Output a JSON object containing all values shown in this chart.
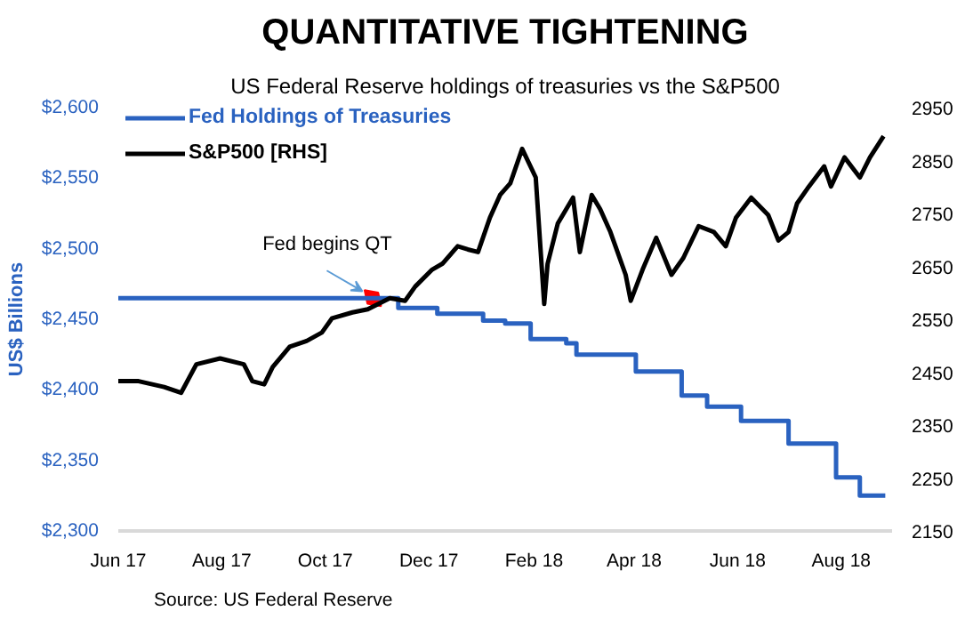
{
  "chart_data": {
    "type": "line",
    "title": "QUANTITATIVE TIGHTENING",
    "subtitle": "US Federal Reserve holdings of treasuries vs the S&P500",
    "ylabel": "US$ Billions",
    "legend": "top left",
    "grid": false,
    "xlim": [
      "2017-06-01",
      "2018-08-31"
    ],
    "xticks": [
      {
        "value": "2017-06-01",
        "label": "Jun 17"
      },
      {
        "value": "2017-08-01",
        "label": "Aug 17"
      },
      {
        "value": "2017-10-01",
        "label": "Oct 17"
      },
      {
        "value": "2017-12-01",
        "label": "Dec 17"
      },
      {
        "value": "2018-02-01",
        "label": "Feb 18"
      },
      {
        "value": "2018-04-01",
        "label": "Apr 18"
      },
      {
        "value": "2018-06-01",
        "label": "Jun 18"
      },
      {
        "value": "2018-08-01",
        "label": "Aug 18"
      }
    ],
    "ylim": [
      2300,
      2600
    ],
    "yticks": [
      {
        "value": 2300,
        "label": "$2,300"
      },
      {
        "value": 2350,
        "label": "$2,350"
      },
      {
        "value": 2400,
        "label": "$2,400"
      },
      {
        "value": 2450,
        "label": "$2,450"
      },
      {
        "value": 2500,
        "label": "$2,500"
      },
      {
        "value": 2550,
        "label": "$2,550"
      },
      {
        "value": 2600,
        "label": "$2,600"
      }
    ],
    "y2lim": [
      2150,
      2950
    ],
    "y2ticks": [
      2150,
      2250,
      2350,
      2450,
      2550,
      2650,
      2750,
      2850,
      2950
    ],
    "series": [
      {
        "name": "Fed Holdings of Treasuries",
        "color": "#2a62c0",
        "type": "step",
        "x": [
          "2017-06-01",
          "2017-11-13",
          "2017-12-06",
          "2018-01-02",
          "2018-01-15",
          "2018-01-30",
          "2018-02-20",
          "2018-02-26",
          "2018-04-02",
          "2018-04-29",
          "2018-05-14",
          "2018-06-03",
          "2018-07-01",
          "2018-07-29",
          "2018-08-12",
          "2018-08-27"
        ],
        "values": [
          2465,
          2458,
          2454,
          2449,
          2447,
          2436,
          2433,
          2425,
          2413,
          2396,
          2388,
          2378,
          2362,
          2338,
          2325,
          2325
        ]
      },
      {
        "name": "S&P500 [RHS]",
        "color": "#000000",
        "type": "line",
        "axis": "y2",
        "x": [
          "2017-06-01",
          "2017-06-13",
          "2017-06-28",
          "2017-07-08",
          "2017-07-17",
          "2017-07-31",
          "2017-08-14",
          "2017-08-19",
          "2017-08-26",
          "2017-08-31",
          "2017-09-10",
          "2017-09-20",
          "2017-09-29",
          "2017-10-05",
          "2017-10-17",
          "2017-10-26",
          "2017-11-08",
          "2017-11-17",
          "2017-11-23",
          "2017-12-03",
          "2017-12-09",
          "2017-12-18",
          "2017-12-24",
          "2017-12-30",
          "2018-01-06",
          "2018-01-12",
          "2018-01-18",
          "2018-01-25",
          "2018-02-02",
          "2018-02-07",
          "2018-02-09",
          "2018-02-15",
          "2018-02-24",
          "2018-02-28",
          "2018-03-07",
          "2018-03-12",
          "2018-03-18",
          "2018-03-27",
          "2018-03-30",
          "2018-04-06",
          "2018-04-14",
          "2018-04-23",
          "2018-04-30",
          "2018-05-09",
          "2018-05-18",
          "2018-05-25",
          "2018-05-31",
          "2018-06-09",
          "2018-06-19",
          "2018-06-25",
          "2018-07-01",
          "2018-07-06",
          "2018-07-13",
          "2018-07-22",
          "2018-07-26",
          "2018-08-03",
          "2018-08-12",
          "2018-08-18",
          "2018-08-26"
        ],
        "values": [
          2433,
          2433,
          2422,
          2411,
          2465,
          2476,
          2465,
          2433,
          2427,
          2460,
          2498,
          2509,
          2525,
          2552,
          2563,
          2569,
          2590,
          2585,
          2612,
          2644,
          2655,
          2688,
          2682,
          2677,
          2742,
          2785,
          2807,
          2872,
          2818,
          2579,
          2655,
          2731,
          2780,
          2677,
          2785,
          2758,
          2715,
          2634,
          2585,
          2644,
          2704,
          2634,
          2666,
          2726,
          2715,
          2688,
          2742,
          2780,
          2747,
          2699,
          2715,
          2769,
          2801,
          2839,
          2801,
          2856,
          2818,
          2856,
          2896
        ]
      }
    ],
    "annotations": [
      {
        "text": "Fed begins QT",
        "x": "2017-10-29",
        "y": 2465
      },
      "Source: US Federal Reserve"
    ]
  }
}
